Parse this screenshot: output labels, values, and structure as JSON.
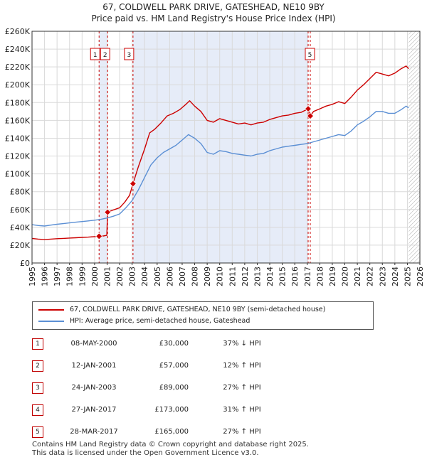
{
  "title": "67, COLDWELL PARK DRIVE, GATESHEAD, NE10 9BY",
  "subtitle": "Price paid vs. HM Land Registry's House Price Index (HPI)",
  "colors": {
    "property": "#cc0000",
    "hpi": "#5b8fd4",
    "shade": "#e6ecf8",
    "grid": "#d9d9d9"
  },
  "chart_data": {
    "type": "line",
    "xlim": [
      1995,
      2026
    ],
    "ylim": [
      0,
      260000
    ],
    "yticks": [
      0,
      20000,
      40000,
      60000,
      80000,
      100000,
      120000,
      140000,
      160000,
      180000,
      200000,
      220000,
      240000,
      260000
    ],
    "ytick_labels": [
      "£0",
      "£20K",
      "£40K",
      "£60K",
      "£80K",
      "£100K",
      "£120K",
      "£140K",
      "£160K",
      "£180K",
      "£200K",
      "£220K",
      "£240K",
      "£260K"
    ],
    "xticks": [
      "1995",
      "1996",
      "1997",
      "1998",
      "1999",
      "2000",
      "2001",
      "2002",
      "2003",
      "2004",
      "2005",
      "2006",
      "2007",
      "2008",
      "2009",
      "2010",
      "2011",
      "2012",
      "2013",
      "2014",
      "2015",
      "2016",
      "2017",
      "2018",
      "2019",
      "2020",
      "2021",
      "2022",
      "2023",
      "2024",
      "2025",
      "2026"
    ],
    "grid": true,
    "shaded_spans": [
      [
        2000.36,
        2001.04
      ],
      [
        2003.07,
        2017.07
      ]
    ],
    "future_hatch_from": 2025.1,
    "series": [
      {
        "name": "67, COLDWELL PARK DRIVE, GATESHEAD, NE10 9BY (semi-detached house)",
        "color": "#cc0000",
        "points": [
          [
            1995.0,
            27500
          ],
          [
            1995.5,
            26800
          ],
          [
            1996.0,
            26200
          ],
          [
            1996.5,
            26800
          ],
          [
            1997.0,
            27300
          ],
          [
            1997.5,
            27600
          ],
          [
            1998.0,
            28000
          ],
          [
            1998.5,
            28300
          ],
          [
            1999.0,
            28700
          ],
          [
            1999.5,
            29000
          ],
          [
            2000.0,
            29600
          ],
          [
            2000.36,
            30000
          ],
          [
            2000.7,
            30300
          ],
          [
            2000.98,
            31000
          ],
          [
            2001.04,
            57000
          ],
          [
            2001.5,
            59500
          ],
          [
            2002.0,
            62000
          ],
          [
            2002.4,
            68000
          ],
          [
            2002.8,
            76000
          ],
          [
            2003.07,
            89000
          ],
          [
            2003.5,
            108000
          ],
          [
            2004.0,
            128000
          ],
          [
            2004.4,
            146000
          ],
          [
            2004.8,
            150000
          ],
          [
            2005.3,
            157000
          ],
          [
            2005.8,
            165000
          ],
          [
            2006.3,
            168000
          ],
          [
            2006.8,
            172000
          ],
          [
            2007.3,
            178000
          ],
          [
            2007.6,
            182000
          ],
          [
            2008.0,
            176000
          ],
          [
            2008.5,
            170000
          ],
          [
            2009.0,
            160000
          ],
          [
            2009.5,
            158000
          ],
          [
            2010.0,
            162000
          ],
          [
            2010.5,
            160000
          ],
          [
            2011.0,
            158000
          ],
          [
            2011.5,
            156000
          ],
          [
            2012.0,
            157000
          ],
          [
            2012.5,
            155000
          ],
          [
            2013.0,
            157000
          ],
          [
            2013.5,
            158000
          ],
          [
            2014.0,
            161000
          ],
          [
            2014.5,
            163000
          ],
          [
            2015.0,
            165000
          ],
          [
            2015.5,
            166000
          ],
          [
            2016.0,
            168000
          ],
          [
            2016.5,
            169000
          ],
          [
            2017.07,
            173000
          ],
          [
            2017.24,
            165000
          ],
          [
            2017.5,
            170000
          ],
          [
            2018.0,
            173000
          ],
          [
            2018.5,
            176000
          ],
          [
            2019.0,
            178000
          ],
          [
            2019.5,
            181000
          ],
          [
            2020.0,
            179000
          ],
          [
            2020.5,
            186000
          ],
          [
            2021.0,
            194000
          ],
          [
            2021.5,
            200000
          ],
          [
            2022.0,
            207000
          ],
          [
            2022.5,
            214000
          ],
          [
            2023.0,
            212000
          ],
          [
            2023.5,
            210000
          ],
          [
            2024.0,
            213000
          ],
          [
            2024.5,
            218000
          ],
          [
            2024.9,
            221000
          ],
          [
            2025.1,
            218000
          ]
        ]
      },
      {
        "name": "HPI: Average price, semi-detached house, Gateshead",
        "color": "#5b8fd4",
        "points": [
          [
            1995.0,
            43000
          ],
          [
            1995.5,
            42000
          ],
          [
            1996.0,
            41500
          ],
          [
            1996.5,
            42500
          ],
          [
            1997.0,
            43500
          ],
          [
            1997.5,
            44200
          ],
          [
            1998.0,
            45000
          ],
          [
            1998.5,
            45800
          ],
          [
            1999.0,
            46500
          ],
          [
            1999.5,
            47200
          ],
          [
            2000.0,
            48000
          ],
          [
            2000.5,
            49000
          ],
          [
            2001.0,
            50500
          ],
          [
            2001.5,
            52500
          ],
          [
            2002.0,
            55000
          ],
          [
            2002.5,
            62000
          ],
          [
            2003.0,
            70000
          ],
          [
            2003.5,
            82000
          ],
          [
            2004.0,
            96000
          ],
          [
            2004.5,
            110000
          ],
          [
            2005.0,
            118000
          ],
          [
            2005.5,
            124000
          ],
          [
            2006.0,
            128000
          ],
          [
            2006.5,
            132000
          ],
          [
            2007.0,
            138000
          ],
          [
            2007.5,
            144000
          ],
          [
            2008.0,
            140000
          ],
          [
            2008.5,
            134000
          ],
          [
            2009.0,
            124000
          ],
          [
            2009.5,
            122000
          ],
          [
            2010.0,
            126000
          ],
          [
            2010.5,
            125000
          ],
          [
            2011.0,
            123000
          ],
          [
            2011.5,
            122000
          ],
          [
            2012.0,
            121000
          ],
          [
            2012.5,
            120000
          ],
          [
            2013.0,
            122000
          ],
          [
            2013.5,
            123000
          ],
          [
            2014.0,
            126000
          ],
          [
            2014.5,
            128000
          ],
          [
            2015.0,
            130000
          ],
          [
            2015.5,
            131000
          ],
          [
            2016.0,
            132000
          ],
          [
            2016.5,
            133000
          ],
          [
            2017.0,
            134000
          ],
          [
            2017.5,
            136000
          ],
          [
            2018.0,
            138000
          ],
          [
            2018.5,
            140000
          ],
          [
            2019.0,
            142000
          ],
          [
            2019.5,
            144000
          ],
          [
            2020.0,
            143000
          ],
          [
            2020.5,
            148000
          ],
          [
            2021.0,
            155000
          ],
          [
            2021.5,
            159000
          ],
          [
            2022.0,
            164000
          ],
          [
            2022.5,
            170000
          ],
          [
            2023.0,
            170000
          ],
          [
            2023.5,
            168000
          ],
          [
            2024.0,
            168000
          ],
          [
            2024.5,
            172000
          ],
          [
            2024.9,
            176000
          ],
          [
            2025.1,
            174000
          ]
        ]
      }
    ],
    "sales": [
      {
        "id": "1",
        "x": 2000.36,
        "y": 30000
      },
      {
        "id": "2",
        "x": 2001.04,
        "y": 57000
      },
      {
        "id": "3",
        "x": 2003.07,
        "y": 89000
      },
      {
        "id": "4",
        "x": 2017.07,
        "y": 173000
      },
      {
        "id": "5",
        "x": 2017.24,
        "y": 165000
      }
    ]
  },
  "legend": {
    "property": "67, COLDWELL PARK DRIVE, GATESHEAD, NE10 9BY (semi-detached house)",
    "hpi": "HPI: Average price, semi-detached house, Gateshead"
  },
  "transactions": [
    {
      "num": "1",
      "date": "08-MAY-2000",
      "price": "£30,000",
      "hpi": "37% ↓ HPI"
    },
    {
      "num": "2",
      "date": "12-JAN-2001",
      "price": "£57,000",
      "hpi": "12% ↑ HPI"
    },
    {
      "num": "3",
      "date": "24-JAN-2003",
      "price": "£89,000",
      "hpi": "27% ↑ HPI"
    },
    {
      "num": "4",
      "date": "27-JAN-2017",
      "price": "£173,000",
      "hpi": "31% ↑ HPI"
    },
    {
      "num": "5",
      "date": "28-MAR-2017",
      "price": "£165,000",
      "hpi": "27% ↑ HPI"
    }
  ],
  "footer": {
    "line1": "Contains HM Land Registry data © Crown copyright and database right 2025.",
    "line2": "This data is licensed under the Open Government Licence v3.0."
  }
}
